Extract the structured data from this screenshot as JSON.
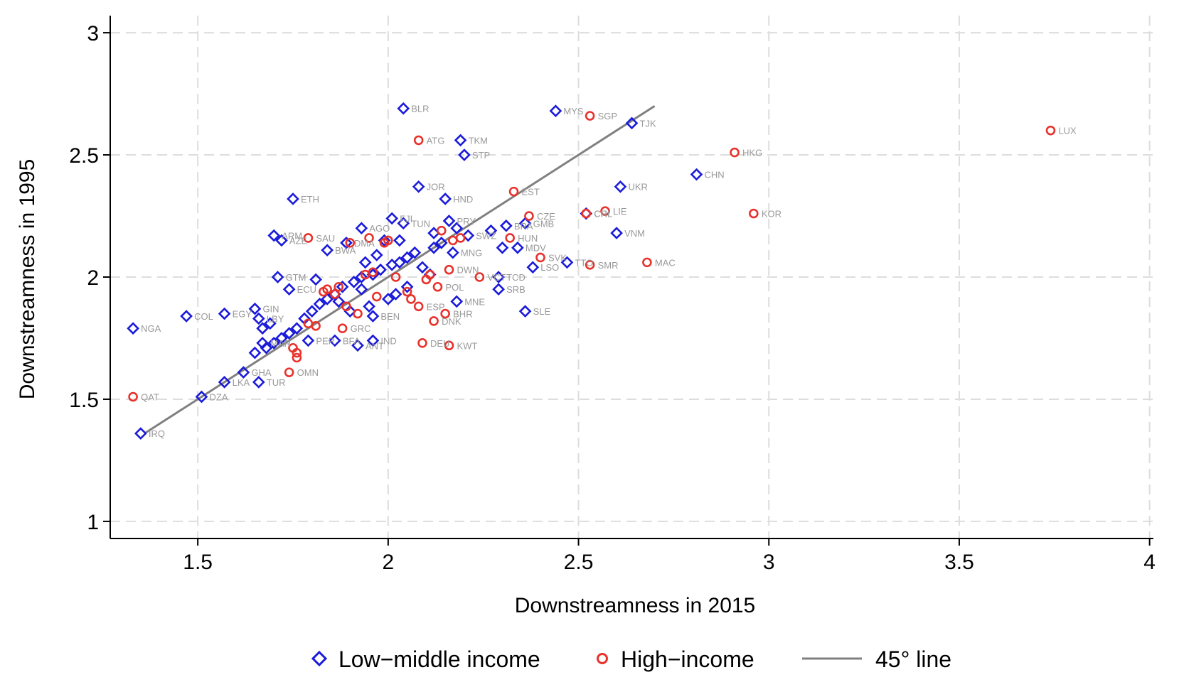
{
  "chart_data": {
    "type": "scatter",
    "xlabel": "Downstreamness in 2015",
    "ylabel": "Downstreamness in 1995",
    "xlim": [
      1.27,
      4.01
    ],
    "ylim": [
      0.93,
      3.07
    ],
    "xticks": [
      1.5,
      2,
      2.5,
      3,
      3.5,
      4
    ],
    "xtick_labels": [
      "1.5",
      "2",
      "2.5",
      "3",
      "3.5",
      "4"
    ],
    "yticks": [
      1,
      1.5,
      2,
      2.5,
      3
    ],
    "ytick_labels": [
      "1",
      "1.5",
      "2",
      "2.5",
      "3"
    ],
    "grid": true,
    "legend_position": "bottom",
    "colors": {
      "low_middle": "#1a1adb",
      "high": "#e8322c",
      "line": "#808080",
      "grid": "#dddddd",
      "label": "#999999"
    },
    "reference_line": {
      "name": "45° line",
      "x": [
        1.36,
        2.7
      ],
      "y": [
        1.36,
        2.7
      ]
    },
    "legend": [
      {
        "key": "low_middle",
        "label": "Low−middle income"
      },
      {
        "key": "high",
        "label": "High−income"
      },
      {
        "key": "line",
        "label": "45° line"
      }
    ],
    "series": [
      {
        "name": "Low−middle income",
        "key": "low_middle",
        "marker": "diamond",
        "points": [
          {
            "label": "BLR",
            "x": 2.04,
            "y": 2.69
          },
          {
            "label": "MYS",
            "x": 2.44,
            "y": 2.68
          },
          {
            "label": "TJK",
            "x": 2.64,
            "y": 2.63
          },
          {
            "label": "TKM",
            "x": 2.19,
            "y": 2.56
          },
          {
            "label": "STP",
            "x": 2.2,
            "y": 2.5
          },
          {
            "label": "CHN",
            "x": 2.81,
            "y": 2.42
          },
          {
            "label": "JOR",
            "x": 2.08,
            "y": 2.37
          },
          {
            "label": "UKR",
            "x": 2.61,
            "y": 2.37
          },
          {
            "label": "ETH",
            "x": 1.75,
            "y": 2.32
          },
          {
            "label": "HND",
            "x": 2.15,
            "y": 2.32
          },
          {
            "label": "GMB",
            "x": 2.36,
            "y": 2.22
          },
          {
            "label": "VNM",
            "x": 2.6,
            "y": 2.18
          },
          {
            "label": "AGO",
            "x": 1.93,
            "y": 2.2
          },
          {
            "label": "TUN",
            "x": 2.04,
            "y": 2.22
          },
          {
            "label": "ARM",
            "x": 1.7,
            "y": 2.17
          },
          {
            "label": "SWZ",
            "x": 2.21,
            "y": 2.17
          },
          {
            "label": "MDV",
            "x": 2.34,
            "y": 2.12
          },
          {
            "label": "MNG",
            "x": 2.17,
            "y": 2.1
          },
          {
            "label": "LSO",
            "x": 2.38,
            "y": 2.04
          },
          {
            "label": "GTM",
            "x": 1.71,
            "y": 2.0
          },
          {
            "label": "TCD",
            "x": 2.29,
            "y": 2.0
          },
          {
            "label": "SRB",
            "x": 2.29,
            "y": 1.95
          },
          {
            "label": "MNE",
            "x": 2.18,
            "y": 1.9
          },
          {
            "label": "SLE",
            "x": 2.36,
            "y": 1.86
          },
          {
            "label": "GIN",
            "x": 1.65,
            "y": 1.87
          },
          {
            "label": "EGY",
            "x": 1.57,
            "y": 1.85
          },
          {
            "label": "COL",
            "x": 1.47,
            "y": 1.84
          },
          {
            "label": "NGA",
            "x": 1.33,
            "y": 1.79
          },
          {
            "label": "LBY",
            "x": 1.66,
            "y": 1.83
          },
          {
            "label": "BEN",
            "x": 1.96,
            "y": 1.84
          },
          {
            "label": "IND",
            "x": 1.96,
            "y": 1.74
          },
          {
            "label": "BFA",
            "x": 1.86,
            "y": 1.74
          },
          {
            "label": "ANT",
            "x": 1.92,
            "y": 1.72
          },
          {
            "label": "GHA",
            "x": 1.62,
            "y": 1.61
          },
          {
            "label": "LKA",
            "x": 1.57,
            "y": 1.57
          },
          {
            "label": "TUR",
            "x": 1.66,
            "y": 1.57
          },
          {
            "label": "DZA",
            "x": 1.51,
            "y": 1.51
          },
          {
            "label": "IRQ",
            "x": 1.35,
            "y": 1.36
          },
          {
            "label": "AZE",
            "x": 1.72,
            "y": 2.15
          },
          {
            "label": "DMA",
            "x": 1.89,
            "y": 2.14
          },
          {
            "label": "BWA",
            "x": 1.84,
            "y": 2.11
          },
          {
            "label": "ECU",
            "x": 1.74,
            "y": 1.95
          },
          {
            "label": "CRI",
            "x": 2.52,
            "y": 2.26
          },
          {
            "label": "TTO",
            "x": 2.47,
            "y": 2.06
          },
          {
            "label": "PRY",
            "x": 2.16,
            "y": 2.23
          },
          {
            "label": "MAR",
            "x": 1.67,
            "y": 1.73
          },
          {
            "label": "PER",
            "x": 1.79,
            "y": 1.74
          },
          {
            "label": "FJI",
            "x": 2.01,
            "y": 2.24
          },
          {
            "label": "BRA",
            "x": 2.31,
            "y": 2.21
          },
          {
            "label": "",
            "x": 2.14,
            "y": 2.14
          },
          {
            "label": "",
            "x": 2.12,
            "y": 2.12
          },
          {
            "label": "",
            "x": 2.07,
            "y": 2.1
          },
          {
            "label": "",
            "x": 2.05,
            "y": 2.08
          },
          {
            "label": "",
            "x": 2.03,
            "y": 2.06
          },
          {
            "label": "",
            "x": 2.01,
            "y": 2.05
          },
          {
            "label": "",
            "x": 1.98,
            "y": 2.03
          },
          {
            "label": "",
            "x": 1.96,
            "y": 2.01
          },
          {
            "label": "",
            "x": 1.93,
            "y": 2.0
          },
          {
            "label": "",
            "x": 1.91,
            "y": 1.98
          },
          {
            "label": "",
            "x": 1.88,
            "y": 1.96
          },
          {
            "label": "",
            "x": 1.86,
            "y": 1.93
          },
          {
            "label": "",
            "x": 1.84,
            "y": 1.91
          },
          {
            "label": "",
            "x": 1.82,
            "y": 1.89
          },
          {
            "label": "",
            "x": 1.8,
            "y": 1.86
          },
          {
            "label": "",
            "x": 1.78,
            "y": 1.83
          },
          {
            "label": "",
            "x": 1.76,
            "y": 1.79
          },
          {
            "label": "",
            "x": 1.74,
            "y": 1.77
          },
          {
            "label": "",
            "x": 1.72,
            "y": 1.75
          },
          {
            "label": "",
            "x": 1.7,
            "y": 1.73
          },
          {
            "label": "",
            "x": 1.68,
            "y": 1.71
          },
          {
            "label": "",
            "x": 1.65,
            "y": 1.69
          },
          {
            "label": "",
            "x": 1.67,
            "y": 1.79
          },
          {
            "label": "",
            "x": 1.69,
            "y": 1.81
          },
          {
            "label": "",
            "x": 1.81,
            "y": 1.99
          },
          {
            "label": "",
            "x": 1.94,
            "y": 2.06
          },
          {
            "label": "",
            "x": 1.97,
            "y": 2.09
          },
          {
            "label": "",
            "x": 2.09,
            "y": 2.04
          },
          {
            "label": "",
            "x": 2.11,
            "y": 2.01
          },
          {
            "label": "",
            "x": 2.05,
            "y": 1.96
          },
          {
            "label": "",
            "x": 2.02,
            "y": 1.93
          },
          {
            "label": "",
            "x": 2.0,
            "y": 1.91
          },
          {
            "label": "",
            "x": 1.95,
            "y": 1.88
          },
          {
            "label": "",
            "x": 1.9,
            "y": 1.86
          },
          {
            "label": "",
            "x": 1.87,
            "y": 1.9
          },
          {
            "label": "",
            "x": 2.12,
            "y": 2.18
          },
          {
            "label": "",
            "x": 2.18,
            "y": 2.2
          },
          {
            "label": "",
            "x": 1.99,
            "y": 2.15
          },
          {
            "label": "",
            "x": 2.03,
            "y": 2.15
          },
          {
            "label": "",
            "x": 2.27,
            "y": 2.19
          },
          {
            "label": "",
            "x": 2.3,
            "y": 2.12
          },
          {
            "label": "",
            "x": 1.93,
            "y": 1.95
          }
        ]
      },
      {
        "name": "High−income",
        "key": "high",
        "marker": "circle",
        "points": [
          {
            "label": "LUX",
            "x": 3.74,
            "y": 2.6
          },
          {
            "label": "SGP",
            "x": 2.53,
            "y": 2.66
          },
          {
            "label": "HKG",
            "x": 2.91,
            "y": 2.51
          },
          {
            "label": "KOR",
            "x": 2.96,
            "y": 2.26
          },
          {
            "label": "ATG",
            "x": 2.08,
            "y": 2.56
          },
          {
            "label": "EST",
            "x": 2.33,
            "y": 2.35
          },
          {
            "label": "CZE",
            "x": 2.37,
            "y": 2.25
          },
          {
            "label": "LIE",
            "x": 2.57,
            "y": 2.27
          },
          {
            "label": "HUN",
            "x": 2.32,
            "y": 2.16
          },
          {
            "label": "MAC",
            "x": 2.68,
            "y": 2.06
          },
          {
            "label": "SMR",
            "x": 2.53,
            "y": 2.05
          },
          {
            "label": "SVK",
            "x": 2.4,
            "y": 2.08
          },
          {
            "label": "VCT",
            "x": 2.24,
            "y": 2.0
          },
          {
            "label": "POL",
            "x": 2.13,
            "y": 1.96
          },
          {
            "label": "BHR",
            "x": 2.15,
            "y": 1.85
          },
          {
            "label": "DNK",
            "x": 2.12,
            "y": 1.82
          },
          {
            "label": "ESP",
            "x": 2.08,
            "y": 1.88
          },
          {
            "label": "DEU",
            "x": 2.09,
            "y": 1.73
          },
          {
            "label": "KWT",
            "x": 2.16,
            "y": 1.72
          },
          {
            "label": "GRC",
            "x": 1.88,
            "y": 1.79
          },
          {
            "label": "OMN",
            "x": 1.74,
            "y": 1.61
          },
          {
            "label": "QAT",
            "x": 1.33,
            "y": 1.51
          },
          {
            "label": "SAU",
            "x": 1.79,
            "y": 2.16
          },
          {
            "label": "DWN",
            "x": 2.16,
            "y": 2.03
          },
          {
            "label": "CHL",
            "x": 2.52,
            "y": 2.26
          },
          {
            "label": "",
            "x": 1.76,
            "y": 1.69
          },
          {
            "label": "",
            "x": 1.76,
            "y": 1.67
          },
          {
            "label": "",
            "x": 1.75,
            "y": 1.71
          },
          {
            "label": "",
            "x": 1.79,
            "y": 1.81
          },
          {
            "label": "",
            "x": 1.81,
            "y": 1.8
          },
          {
            "label": "",
            "x": 1.84,
            "y": 1.95
          },
          {
            "label": "",
            "x": 1.86,
            "y": 1.93
          },
          {
            "label": "",
            "x": 1.89,
            "y": 1.88
          },
          {
            "label": "",
            "x": 1.92,
            "y": 1.85
          },
          {
            "label": "",
            "x": 1.94,
            "y": 2.01
          },
          {
            "label": "",
            "x": 1.96,
            "y": 2.02
          },
          {
            "label": "",
            "x": 1.97,
            "y": 1.92
          },
          {
            "label": "",
            "x": 1.99,
            "y": 2.14
          },
          {
            "label": "",
            "x": 2.0,
            "y": 2.15
          },
          {
            "label": "",
            "x": 1.95,
            "y": 2.16
          },
          {
            "label": "",
            "x": 1.9,
            "y": 2.14
          },
          {
            "label": "",
            "x": 2.02,
            "y": 2.0
          },
          {
            "label": "",
            "x": 2.05,
            "y": 1.94
          },
          {
            "label": "",
            "x": 2.06,
            "y": 1.91
          },
          {
            "label": "",
            "x": 2.1,
            "y": 1.99
          },
          {
            "label": "",
            "x": 2.11,
            "y": 2.01
          },
          {
            "label": "",
            "x": 2.14,
            "y": 2.19
          },
          {
            "label": "",
            "x": 2.17,
            "y": 2.15
          },
          {
            "label": "",
            "x": 2.19,
            "y": 2.16
          },
          {
            "label": "",
            "x": 1.87,
            "y": 1.96
          },
          {
            "label": "",
            "x": 1.83,
            "y": 1.94
          }
        ]
      }
    ]
  }
}
